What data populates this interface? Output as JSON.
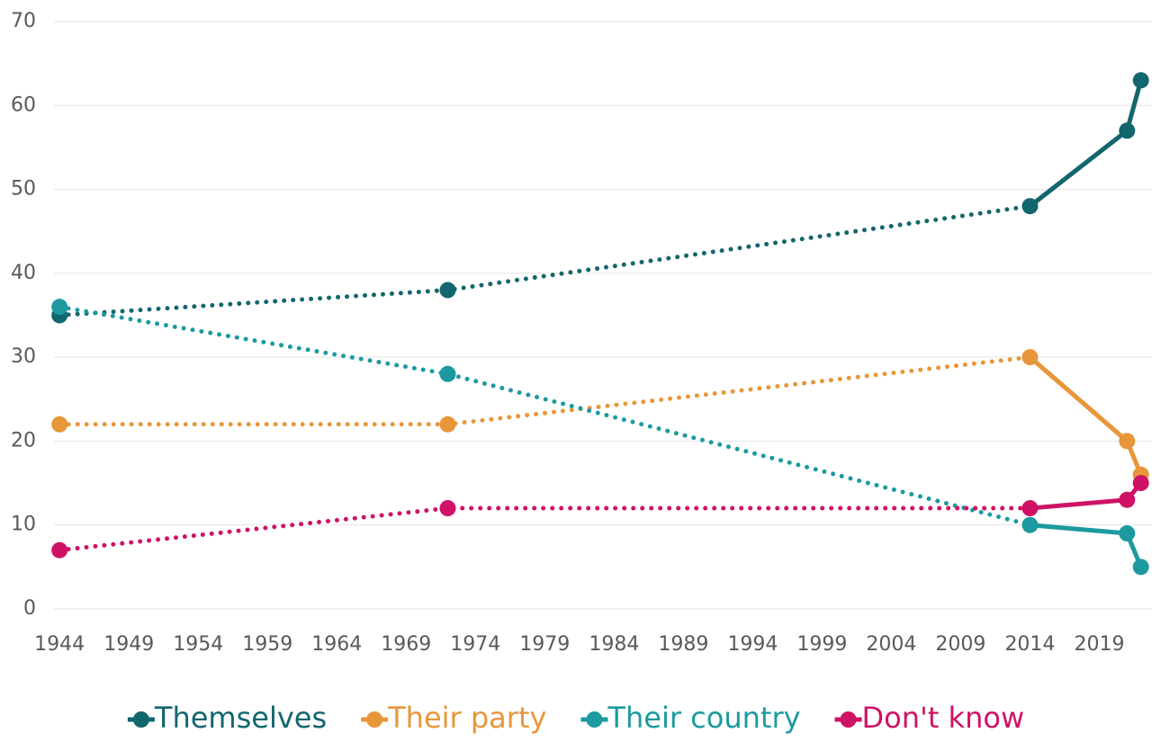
{
  "chart_data": {
    "type": "line",
    "x": [
      1944,
      1972,
      2014,
      2021,
      2022
    ],
    "series": [
      {
        "name": "Themselves",
        "color": "#12666d",
        "values": [
          35,
          38,
          48,
          57,
          63
        ]
      },
      {
        "name": "Their party",
        "color": "#e8963a",
        "values": [
          22,
          22,
          30,
          20,
          16
        ]
      },
      {
        "name": "Their country",
        "color": "#1c9aa0",
        "values": [
          36,
          28,
          10,
          9,
          5
        ]
      },
      {
        "name": "Don't know",
        "color": "#cf1266",
        "values": [
          7,
          12,
          12,
          13,
          15
        ]
      }
    ],
    "xlim": [
      1942.3,
      2022.8
    ],
    "xticks": [
      1944,
      1949,
      1954,
      1959,
      1964,
      1969,
      1974,
      1979,
      1984,
      1989,
      1994,
      1999,
      2004,
      2009,
      2014,
      2019
    ],
    "ylim": [
      0,
      70
    ],
    "yticks": [
      0,
      10,
      20,
      30,
      40,
      50,
      60,
      70
    ],
    "grid": true,
    "dotted_before": 2014,
    "legend": "bottom"
  }
}
